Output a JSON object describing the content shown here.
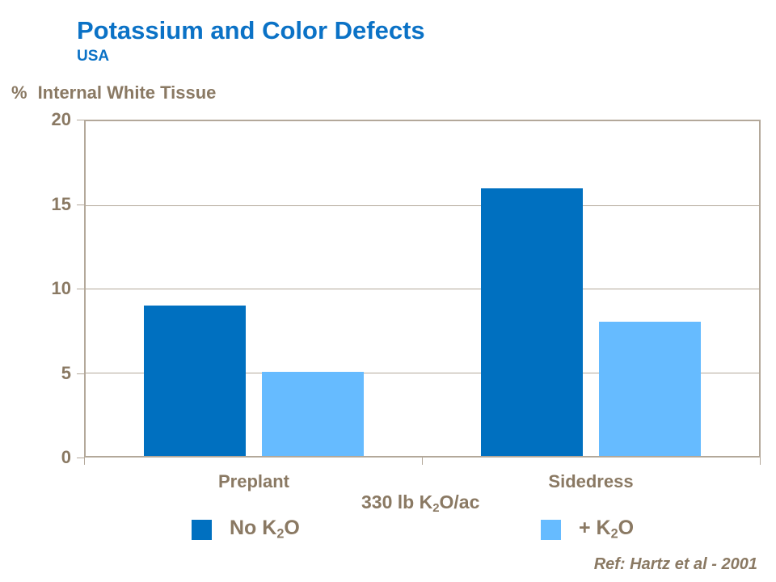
{
  "header": {
    "title": "Potassium and Color Defects",
    "subtitle": "USA"
  },
  "colors": {
    "title_blue": "#0B72C6",
    "label_brown": "#8A7963",
    "axis_line": "#B3A89A",
    "series_dark_blue": "#0070C0",
    "series_light_blue": "#66BBFF"
  },
  "chart_data": {
    "type": "bar",
    "title": "Potassium and Color Defects",
    "ylabel_parts": {
      "percent": "%",
      "text": "Internal White Tissue"
    },
    "xlabel_parts": {
      "pre": "330 lb K",
      "sub": "2",
      "post": "O/ac"
    },
    "categories": [
      "Preplant",
      "Sidedress"
    ],
    "series": [
      {
        "name": "No K2O",
        "values": [
          9,
          16
        ],
        "color": "#0070C0"
      },
      {
        "name": "+ K2O",
        "values": [
          5,
          8
        ],
        "color": "#66BBFF"
      }
    ],
    "ylim": [
      0,
      20
    ],
    "yticks": [
      0,
      5,
      10,
      15,
      20
    ],
    "grid": "horizontal",
    "legend_position": "bottom",
    "data_labels": false
  },
  "legend": {
    "items": [
      {
        "pre": "No K",
        "sub": "2",
        "post": "O",
        "color": "#0070C0"
      },
      {
        "pre": "+ K",
        "sub": "2",
        "post": "O",
        "color": "#66BBFF"
      }
    ]
  },
  "footer": {
    "reference": "Ref: Hartz et al - 2001"
  }
}
